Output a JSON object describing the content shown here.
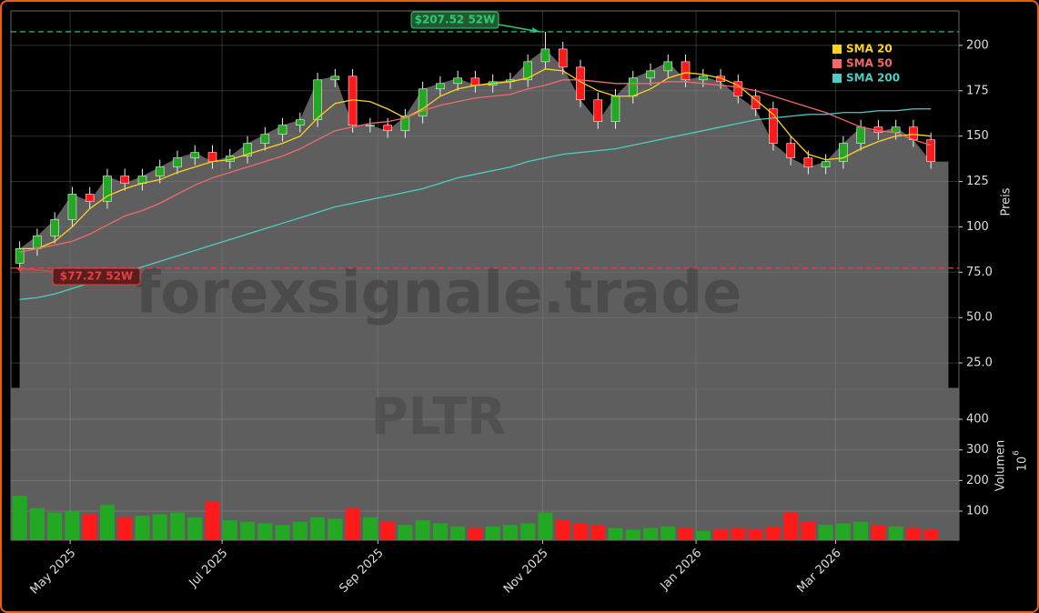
{
  "chart_data": [
    {
      "type": "candlestick",
      "panel": "price",
      "y_label": "Preis",
      "watermark": "forexsignale.trade",
      "categories": [
        null,
        null,
        null,
        null,
        null,
        null,
        null,
        null,
        null,
        null,
        null,
        null,
        null,
        null,
        null,
        null,
        null,
        null,
        null,
        null,
        null,
        null,
        null,
        null,
        null,
        null,
        null,
        null,
        null,
        null,
        null,
        null,
        null,
        null,
        null,
        null,
        null,
        null,
        null,
        null,
        null,
        null,
        null,
        null,
        null,
        null,
        null,
        null,
        null,
        null,
        null,
        null,
        null
      ],
      "xlim": [
        0,
        54.1
      ],
      "xticks": [
        {
          "value": 3.38,
          "label": "May 2025"
        },
        {
          "value": 12.05,
          "label": "Jul 2025"
        },
        {
          "value": 20.94,
          "label": "Sep 2025"
        },
        {
          "value": 30.34,
          "label": "Nov 2025"
        },
        {
          "value": 39.1,
          "label": "Jan 2026"
        },
        {
          "value": 47.06,
          "label": "Mar 2026"
        }
      ],
      "ylim": [
        11,
        219
      ],
      "yticks": [
        {
          "value": 25,
          "label": "25.0"
        },
        {
          "value": 50,
          "label": "50.0"
        },
        {
          "value": 75,
          "label": "75.0"
        },
        100,
        125,
        150,
        175,
        200
      ],
      "grid": true,
      "up_color": "#22a822",
      "down_color": "#ff1a1a",
      "area_color": "#5e5e5e",
      "open": [
        80,
        88,
        95,
        104,
        118,
        114,
        128,
        124,
        128,
        133,
        138,
        141,
        136,
        139,
        146,
        151,
        156,
        159,
        181,
        183,
        156,
        156,
        153,
        161,
        176,
        179,
        182,
        178,
        180,
        181,
        191,
        198,
        188,
        170,
        158,
        172,
        182,
        186,
        191,
        181,
        183,
        180,
        172,
        165,
        146,
        138,
        133,
        136,
        146,
        155,
        152,
        155,
        148
      ],
      "high": [
        92,
        99,
        108,
        122,
        122,
        132,
        132,
        132,
        137,
        142,
        145,
        145,
        143,
        150,
        155,
        160,
        163,
        185,
        187,
        187,
        160,
        160,
        165,
        180,
        183,
        186,
        186,
        184,
        185,
        195,
        207.52,
        202,
        192,
        174,
        176,
        186,
        190,
        195,
        195,
        187,
        187,
        184,
        176,
        169,
        150,
        142,
        140,
        150,
        159,
        159,
        159,
        159,
        152
      ],
      "low": [
        77.27,
        84,
        91,
        100,
        110,
        110,
        120,
        120,
        124,
        129,
        134,
        132,
        132,
        135,
        142,
        147,
        152,
        155,
        177,
        152,
        152,
        149,
        149,
        157,
        172,
        175,
        174,
        174,
        176,
        177,
        187,
        184,
        166,
        154,
        154,
        168,
        178,
        182,
        177,
        177,
        176,
        168,
        161,
        142,
        134,
        129,
        129,
        132,
        142,
        148,
        148,
        144,
        132
      ],
      "close": [
        88,
        95,
        104,
        118,
        114,
        128,
        124,
        128,
        133,
        138,
        141,
        136,
        139,
        146,
        151,
        156,
        159,
        181,
        183,
        156,
        156,
        153,
        161,
        176,
        179,
        182,
        178,
        180,
        181,
        191,
        198,
        188,
        170,
        158,
        172,
        182,
        186,
        191,
        181,
        183,
        180,
        172,
        165,
        146,
        138,
        133,
        136,
        146,
        155,
        152,
        155,
        148,
        136
      ],
      "series": [
        {
          "name": "SMA 20",
          "color": "#ffd21f",
          "values": [
            88,
            88,
            92,
            100,
            110,
            117,
            121,
            124,
            126,
            130,
            133,
            136,
            137,
            140,
            143,
            146,
            150,
            160,
            168,
            170,
            169,
            165,
            160,
            165,
            172,
            176,
            178,
            179,
            180,
            182,
            187,
            186,
            180,
            175,
            172,
            172,
            176,
            182,
            185,
            184,
            182,
            178,
            170,
            162,
            150,
            140,
            137,
            138,
            143,
            147,
            150,
            151,
            150
          ]
        },
        {
          "name": "SMA 50",
          "color": "#f06a6a",
          "values": [
            86,
            88,
            90,
            92,
            96,
            101,
            106,
            109,
            113,
            118,
            123,
            127,
            130,
            133,
            136,
            139,
            143,
            148,
            153,
            155,
            157,
            158,
            160,
            164,
            167,
            169,
            171,
            172,
            173,
            176,
            178,
            181,
            181,
            180,
            179,
            179,
            179,
            180,
            180,
            179,
            178,
            177,
            175,
            172,
            169,
            166,
            163,
            159,
            155,
            153,
            152,
            148,
            145
          ]
        },
        {
          "name": "SMA 200",
          "color": "#4ecdc4",
          "values": [
            60,
            61,
            63,
            66,
            69,
            72,
            75,
            78,
            81,
            84,
            87,
            90,
            93,
            96,
            99,
            102,
            105,
            108,
            111,
            113,
            115,
            117,
            119,
            121,
            124,
            127,
            129,
            131,
            133,
            136,
            138,
            140,
            141,
            142,
            143,
            145,
            147,
            149,
            151,
            153,
            155,
            157,
            159,
            160,
            161,
            162,
            162,
            163,
            163,
            164,
            164,
            165,
            165
          ]
        }
      ],
      "legend": "upper right",
      "annotations": [
        {
          "text": "$207.52 52W",
          "value": 207.52,
          "color": "#2ecc71"
        },
        {
          "text": "$77.27 52W",
          "value": 77.27,
          "color": "#e84040"
        }
      ]
    },
    {
      "type": "bar",
      "panel": "volume",
      "y_label": "Volumen",
      "offset_label": "10",
      "offset_exponent": "6",
      "watermark": "PLTR",
      "ylim": [
        5,
        501
      ],
      "yticks": [
        100,
        200,
        300,
        400
      ],
      "grid": true,
      "values": [
        150,
        110,
        95,
        100,
        90,
        120,
        80,
        85,
        90,
        95,
        80,
        130,
        70,
        65,
        60,
        55,
        65,
        80,
        75,
        110,
        80,
        65,
        55,
        70,
        60,
        50,
        45,
        50,
        55,
        60,
        95,
        70,
        60,
        55,
        45,
        40,
        45,
        50,
        45,
        35,
        40,
        45,
        40,
        50,
        95,
        65,
        55,
        60,
        65,
        55,
        50,
        45,
        40
      ]
    }
  ]
}
